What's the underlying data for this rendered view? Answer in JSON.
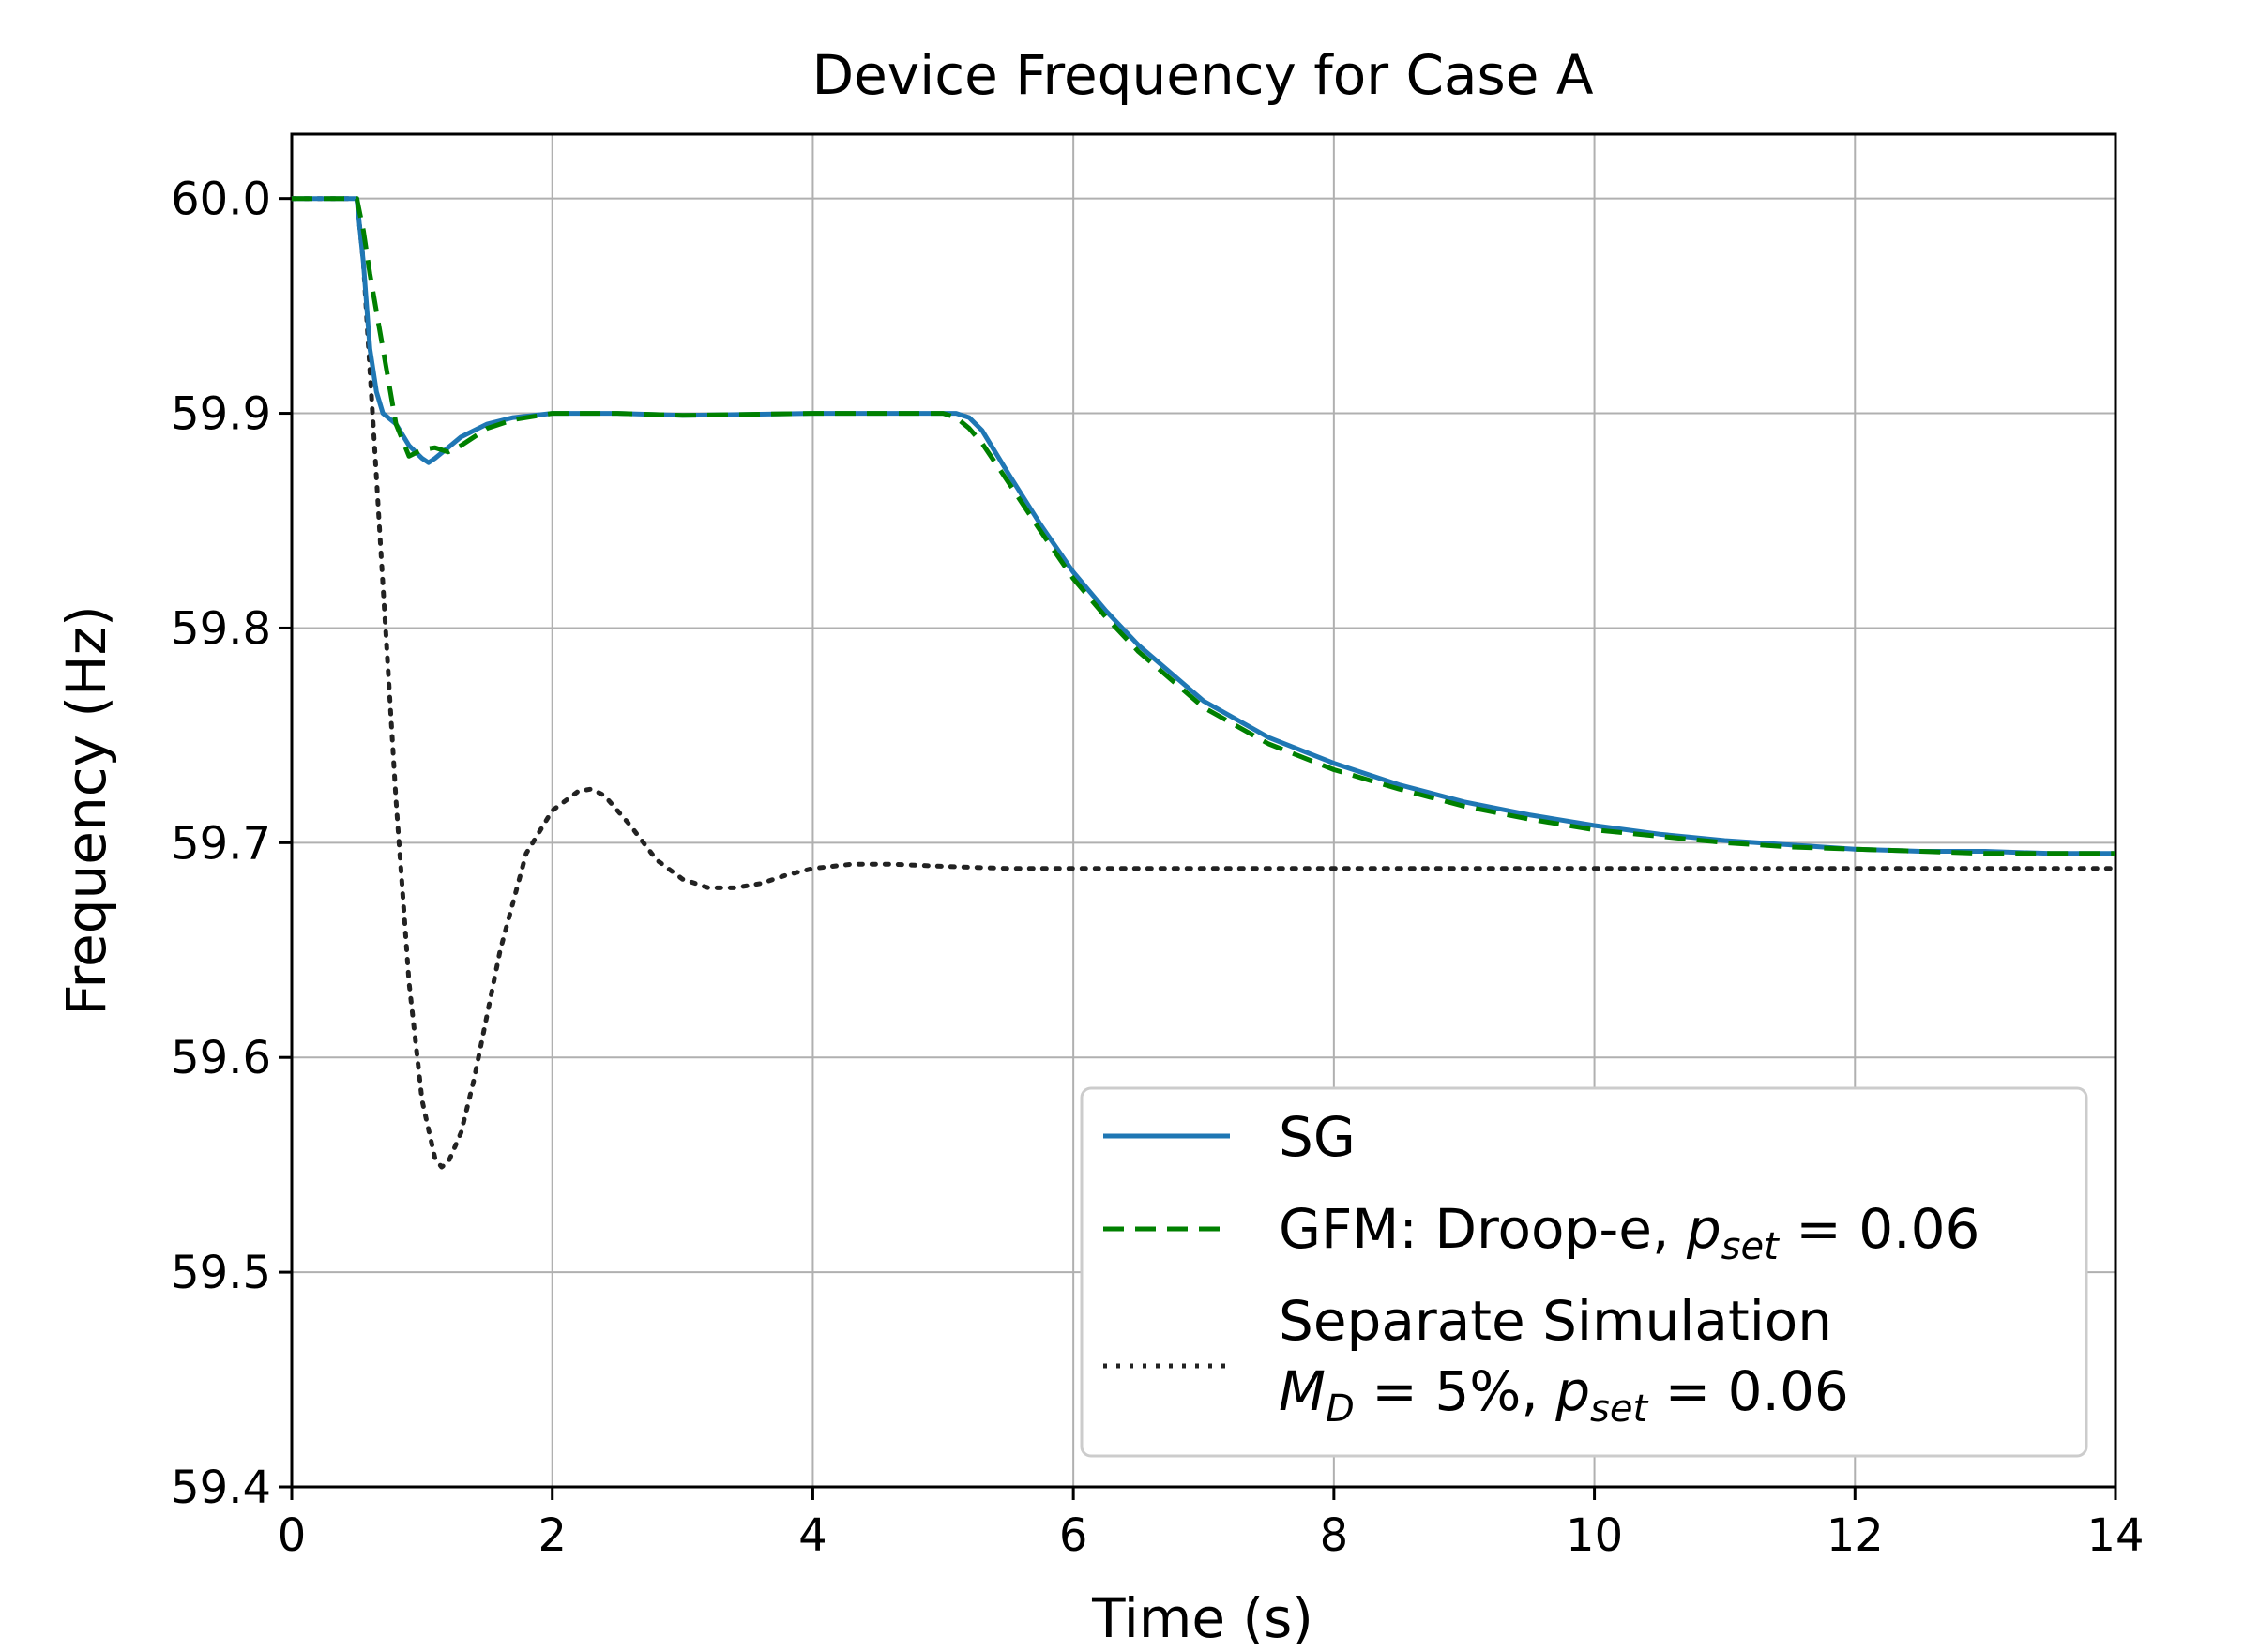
{
  "chart_data": {
    "type": "line",
    "title": "Device Frequency for Case A",
    "xlabel": "Time (s)",
    "ylabel": "Frequency (Hz)",
    "xlim": [
      0,
      14
    ],
    "ylim": [
      59.4,
      60.03
    ],
    "xticks": [
      0,
      2,
      4,
      6,
      8,
      10,
      12,
      14
    ],
    "xtick_labels": [
      "0",
      "2",
      "4",
      "6",
      "8",
      "10",
      "12",
      "14"
    ],
    "yticks": [
      59.4,
      59.5,
      59.6,
      59.7,
      59.8,
      59.9,
      60.0
    ],
    "ytick_labels": [
      "59.4",
      "59.5",
      "59.6",
      "59.7",
      "59.8",
      "59.9",
      "60.0"
    ],
    "grid": true,
    "legend_position": "lower-right",
    "legend": {
      "sg": "SG",
      "gfm_prefix": "GFM: Droop-e, ",
      "p_symbol": "p",
      "set_sub": "set",
      "gfm_value": " = 0.06",
      "sep_line1": "Separate Simulation",
      "m_symbol": "M",
      "d_sub": "D",
      "md_value": " = 5%, ",
      "sep_value": " = 0.06"
    },
    "series": [
      {
        "name": "SG",
        "color": "#1f77b4",
        "style": "solid",
        "x": [
          0,
          0.5,
          0.55,
          0.6,
          0.65,
          0.7,
          0.8,
          0.9,
          1.0,
          1.05,
          1.1,
          1.2,
          1.3,
          1.5,
          1.7,
          2.0,
          2.5,
          3.0,
          4.0,
          5.0,
          5.1,
          5.2,
          5.3,
          5.5,
          5.75,
          6.0,
          6.25,
          6.5,
          7.0,
          7.5,
          8.0,
          8.5,
          9.0,
          9.5,
          10.0,
          10.5,
          11.0,
          11.5,
          12.0,
          12.5,
          13.0,
          13.5,
          14.0
        ],
        "y": [
          60.0,
          60.0,
          59.97,
          59.93,
          59.91,
          59.9,
          59.895,
          59.885,
          59.879,
          59.877,
          59.879,
          59.884,
          59.889,
          59.895,
          59.898,
          59.9,
          59.9,
          59.899,
          59.9,
          59.9,
          59.9,
          59.898,
          59.892,
          59.872,
          59.848,
          59.826,
          59.808,
          59.792,
          59.766,
          59.749,
          59.737,
          59.727,
          59.719,
          59.713,
          59.708,
          59.704,
          59.701,
          59.699,
          59.697,
          59.696,
          59.696,
          59.695,
          59.695
        ]
      },
      {
        "name": "GFM: Droop-e, pset = 0.06",
        "color": "#008000",
        "style": "dashed",
        "x": [
          0,
          0.5,
          0.55,
          0.6,
          0.7,
          0.8,
          0.9,
          1.0,
          1.1,
          1.2,
          1.3,
          1.5,
          1.7,
          2.0,
          2.5,
          3.0,
          4.0,
          5.0,
          5.1,
          5.2,
          5.3,
          5.5,
          5.75,
          6.0,
          6.25,
          6.5,
          7.0,
          7.5,
          8.0,
          8.5,
          9.0,
          9.5,
          10.0,
          10.5,
          11.0,
          11.5,
          12.0,
          12.5,
          13.0,
          13.5,
          14.0
        ],
        "y": [
          60.0,
          60.0,
          59.985,
          59.965,
          59.93,
          59.895,
          59.88,
          59.883,
          59.884,
          59.882,
          59.885,
          59.893,
          59.897,
          59.9,
          59.9,
          59.899,
          59.9,
          59.9,
          59.898,
          59.893,
          59.886,
          59.868,
          59.845,
          59.823,
          59.805,
          59.789,
          59.763,
          59.746,
          59.734,
          59.725,
          59.717,
          59.711,
          59.706,
          59.703,
          59.7,
          59.698,
          59.697,
          59.696,
          59.695,
          59.695,
          59.695
        ]
      },
      {
        "name": "Separate Simulation MD = 5%, pset = 0.06",
        "color": "#222222",
        "style": "dotted",
        "x": [
          0,
          0.5,
          0.55,
          0.6,
          0.65,
          0.7,
          0.8,
          0.9,
          1.0,
          1.1,
          1.15,
          1.2,
          1.3,
          1.4,
          1.5,
          1.6,
          1.8,
          2.0,
          2.2,
          2.3,
          2.4,
          2.6,
          2.8,
          3.0,
          3.2,
          3.4,
          3.6,
          3.8,
          4.0,
          4.3,
          4.6,
          5.0,
          5.5,
          6.0,
          7.0,
          8.0,
          10.0,
          12.0,
          14.0
        ],
        "y": [
          60.0,
          60.0,
          59.97,
          59.92,
          59.87,
          59.82,
          59.72,
          59.635,
          59.58,
          59.553,
          59.549,
          59.551,
          59.565,
          59.59,
          59.62,
          59.65,
          59.695,
          59.715,
          59.724,
          59.725,
          59.722,
          59.708,
          59.692,
          59.683,
          59.679,
          59.679,
          59.681,
          59.685,
          59.688,
          59.69,
          59.69,
          59.689,
          59.688,
          59.688,
          59.688,
          59.688,
          59.688,
          59.688,
          59.688
        ]
      }
    ]
  }
}
